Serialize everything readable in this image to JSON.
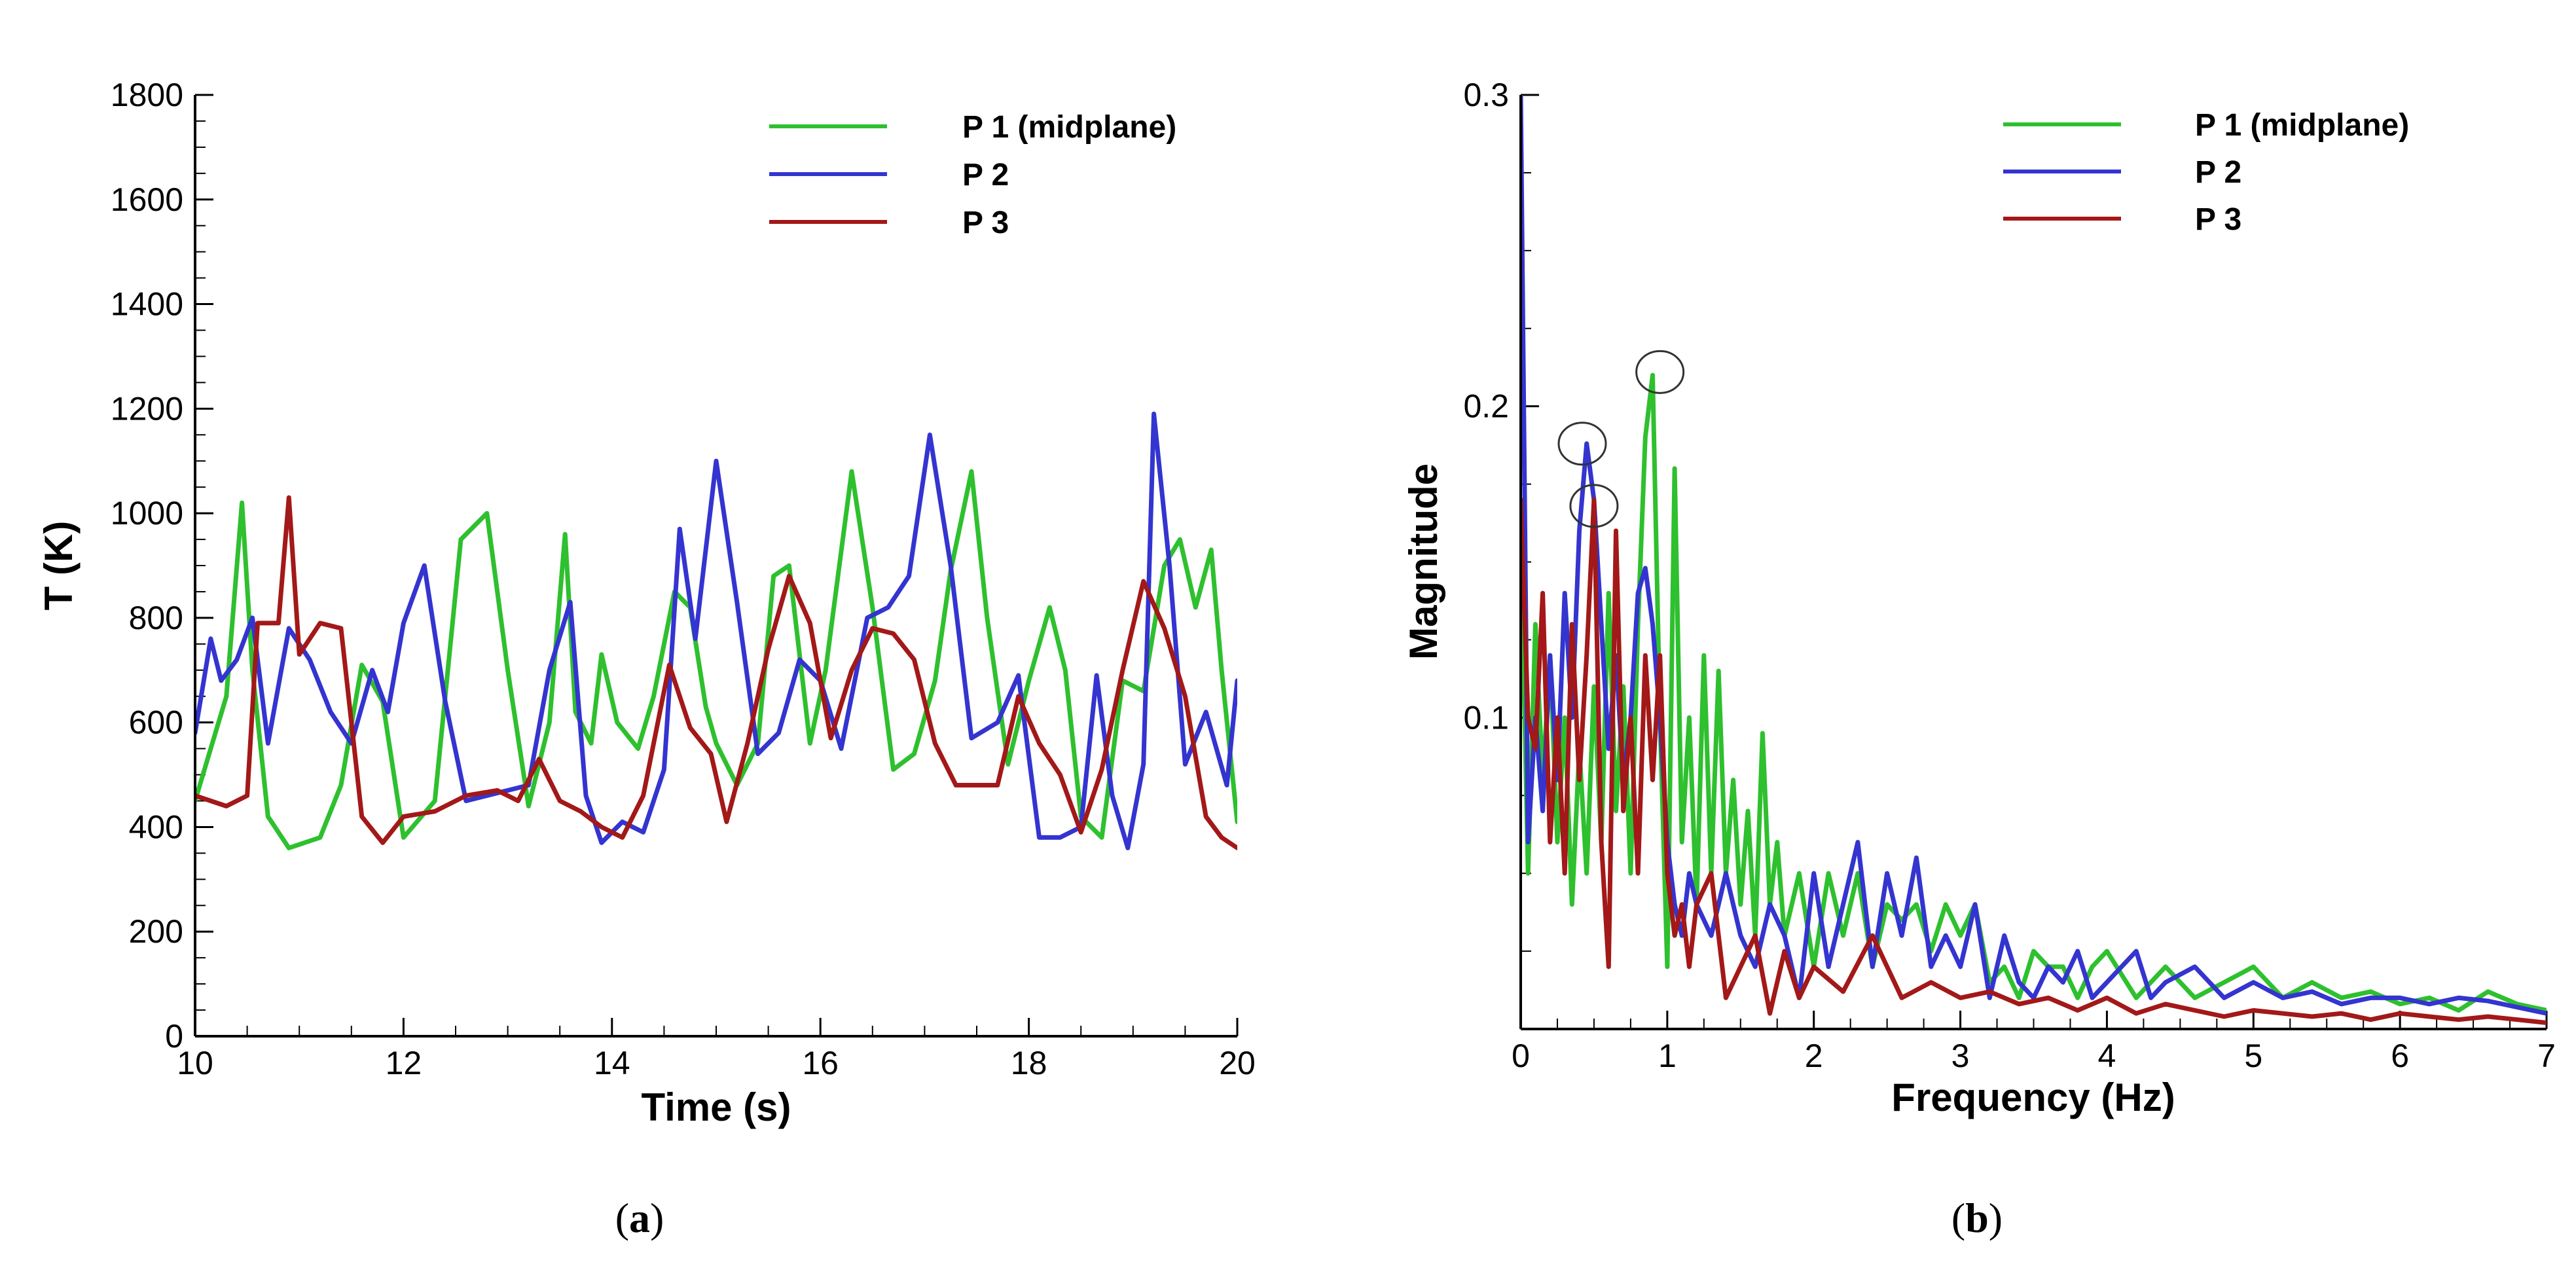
{
  "colors": {
    "green": "#2ec02e",
    "blue": "#3434d0",
    "red": "#a31818"
  },
  "captions": {
    "a_letter": "a",
    "b_letter": "b"
  },
  "chart_data": [
    {
      "id": "a",
      "type": "line",
      "xlabel": "Time (s)",
      "ylabel": "T (K)",
      "xlim": [
        10,
        20
      ],
      "ylim": [
        0,
        1800
      ],
      "xticks": [
        10,
        12,
        14,
        16,
        18,
        20
      ],
      "yticks": [
        0,
        200,
        400,
        600,
        800,
        1000,
        1200,
        1400,
        1600,
        1800
      ],
      "legend_position": "top-right",
      "series": [
        {
          "name": "P 1 (midplane)",
          "color": "#2ec02e",
          "x": [
            10,
            10.3,
            10.45,
            10.55,
            10.7,
            10.9,
            11.2,
            11.4,
            11.6,
            11.8,
            12.0,
            12.3,
            12.55,
            12.8,
            13.0,
            13.2,
            13.4,
            13.55,
            13.65,
            13.8,
            13.9,
            14.05,
            14.25,
            14.4,
            14.6,
            14.75,
            14.9,
            15.0,
            15.2,
            15.4,
            15.55,
            15.7,
            15.9,
            16.05,
            16.3,
            16.5,
            16.7,
            16.9,
            17.1,
            17.25,
            17.45,
            17.6,
            17.8,
            18.0,
            18.2,
            18.35,
            18.5,
            18.7,
            18.9,
            19.1,
            19.3,
            19.45,
            19.6,
            19.75,
            19.85,
            20.0
          ],
          "y": [
            450,
            650,
            1020,
            700,
            420,
            360,
            380,
            480,
            710,
            640,
            380,
            450,
            950,
            1000,
            700,
            440,
            600,
            960,
            620,
            560,
            730,
            600,
            550,
            650,
            850,
            820,
            630,
            560,
            480,
            560,
            880,
            900,
            560,
            700,
            1080,
            820,
            510,
            540,
            680,
            890,
            1080,
            800,
            520,
            680,
            820,
            700,
            420,
            380,
            680,
            660,
            900,
            950,
            820,
            930,
            700,
            410
          ]
        },
        {
          "name": "P 2",
          "color": "#3434d0",
          "x": [
            10,
            10.15,
            10.25,
            10.4,
            10.55,
            10.7,
            10.9,
            11.1,
            11.3,
            11.5,
            11.7,
            11.85,
            12.0,
            12.2,
            12.4,
            12.6,
            12.8,
            13.0,
            13.2,
            13.4,
            13.6,
            13.75,
            13.9,
            14.1,
            14.3,
            14.5,
            14.65,
            14.8,
            15.0,
            15.2,
            15.4,
            15.6,
            15.8,
            16.0,
            16.2,
            16.45,
            16.65,
            16.85,
            17.05,
            17.25,
            17.45,
            17.7,
            17.9,
            18.1,
            18.3,
            18.5,
            18.65,
            18.8,
            18.95,
            19.1,
            19.2,
            19.35,
            19.5,
            19.7,
            19.9,
            20.0
          ],
          "y": [
            580,
            760,
            680,
            720,
            800,
            560,
            780,
            720,
            620,
            560,
            700,
            620,
            790,
            900,
            640,
            450,
            460,
            470,
            480,
            700,
            830,
            460,
            370,
            410,
            390,
            510,
            970,
            760,
            1100,
            830,
            540,
            580,
            720,
            680,
            550,
            800,
            820,
            880,
            1150,
            900,
            570,
            600,
            690,
            380,
            380,
            400,
            690,
            460,
            360,
            520,
            1190,
            900,
            520,
            620,
            480,
            680
          ]
        },
        {
          "name": "P 3",
          "color": "#a31818",
          "x": [
            10,
            10.3,
            10.5,
            10.6,
            10.8,
            10.9,
            11.0,
            11.2,
            11.4,
            11.6,
            11.8,
            12.0,
            12.3,
            12.6,
            12.9,
            13.1,
            13.3,
            13.5,
            13.7,
            13.9,
            14.1,
            14.3,
            14.55,
            14.75,
            14.95,
            15.1,
            15.3,
            15.5,
            15.7,
            15.9,
            16.1,
            16.3,
            16.5,
            16.7,
            16.9,
            17.1,
            17.3,
            17.5,
            17.7,
            17.9,
            18.1,
            18.3,
            18.5,
            18.7,
            18.9,
            19.1,
            19.3,
            19.5,
            19.7,
            19.85,
            20.0
          ],
          "y": [
            460,
            440,
            460,
            790,
            790,
            1030,
            730,
            790,
            780,
            420,
            370,
            420,
            430,
            460,
            470,
            450,
            530,
            450,
            430,
            400,
            380,
            460,
            710,
            590,
            540,
            410,
            560,
            740,
            880,
            790,
            570,
            700,
            780,
            770,
            720,
            560,
            480,
            480,
            480,
            650,
            560,
            500,
            390,
            510,
            700,
            870,
            780,
            650,
            420,
            380,
            360
          ]
        }
      ]
    },
    {
      "id": "b",
      "type": "line",
      "xlabel": "Frequency (Hz)",
      "ylabel": "Magnitude",
      "xlim": [
        0,
        7
      ],
      "ylim": [
        0,
        0.3
      ],
      "xticks": [
        0,
        1,
        2,
        3,
        4,
        5,
        6,
        7
      ],
      "yticks": [
        0.1,
        0.2,
        0.3
      ],
      "legend_position": "top-right",
      "annotations": [
        "circle at f≈0.9 Hz on P 1 peak",
        "circle at f≈0.45 Hz on P 2 peak",
        "circle at f≈0.5 Hz on P 3 peak"
      ],
      "circled_peaks": [
        {
          "x": 0.95,
          "y": 0.211
        },
        {
          "x": 0.42,
          "y": 0.188
        },
        {
          "x": 0.5,
          "y": 0.168
        }
      ],
      "series": [
        {
          "name": "P 1 (midplane)",
          "color": "#2ec02e",
          "x": [
            0,
            0.05,
            0.1,
            0.15,
            0.2,
            0.25,
            0.3,
            0.35,
            0.4,
            0.45,
            0.5,
            0.55,
            0.6,
            0.65,
            0.7,
            0.75,
            0.8,
            0.85,
            0.9,
            0.95,
            1.0,
            1.05,
            1.1,
            1.15,
            1.2,
            1.25,
            1.3,
            1.35,
            1.4,
            1.45,
            1.5,
            1.55,
            1.6,
            1.65,
            1.7,
            1.75,
            1.8,
            1.9,
            2.0,
            2.1,
            2.2,
            2.3,
            2.4,
            2.5,
            2.6,
            2.7,
            2.8,
            2.9,
            3.0,
            3.1,
            3.2,
            3.3,
            3.4,
            3.5,
            3.6,
            3.7,
            3.8,
            3.9,
            4.0,
            4.2,
            4.4,
            4.6,
            4.8,
            5.0,
            5.2,
            5.4,
            5.6,
            5.8,
            6.0,
            6.2,
            6.4,
            6.6,
            6.8,
            7.0
          ],
          "y": [
            0.16,
            0.05,
            0.13,
            0.08,
            0.12,
            0.06,
            0.1,
            0.04,
            0.09,
            0.05,
            0.11,
            0.06,
            0.14,
            0.07,
            0.11,
            0.05,
            0.13,
            0.19,
            0.21,
            0.1,
            0.02,
            0.18,
            0.06,
            0.1,
            0.04,
            0.12,
            0.05,
            0.115,
            0.05,
            0.08,
            0.04,
            0.07,
            0.03,
            0.095,
            0.04,
            0.06,
            0.03,
            0.05,
            0.02,
            0.05,
            0.03,
            0.05,
            0.02,
            0.04,
            0.035,
            0.04,
            0.025,
            0.04,
            0.03,
            0.04,
            0.015,
            0.02,
            0.01,
            0.025,
            0.02,
            0.02,
            0.01,
            0.02,
            0.025,
            0.01,
            0.02,
            0.01,
            0.015,
            0.02,
            0.01,
            0.015,
            0.01,
            0.012,
            0.008,
            0.01,
            0.006,
            0.012,
            0.008,
            0.006
          ]
        },
        {
          "name": "P 2",
          "color": "#3434d0",
          "x": [
            0,
            0.05,
            0.1,
            0.15,
            0.2,
            0.25,
            0.3,
            0.35,
            0.4,
            0.45,
            0.5,
            0.55,
            0.6,
            0.65,
            0.7,
            0.75,
            0.8,
            0.85,
            0.9,
            0.95,
            1.0,
            1.05,
            1.1,
            1.15,
            1.2,
            1.3,
            1.4,
            1.5,
            1.6,
            1.7,
            1.8,
            1.9,
            2.0,
            2.1,
            2.2,
            2.3,
            2.4,
            2.5,
            2.6,
            2.7,
            2.8,
            2.9,
            3.0,
            3.1,
            3.2,
            3.3,
            3.4,
            3.5,
            3.6,
            3.7,
            3.8,
            3.9,
            4.0,
            4.1,
            4.2,
            4.3,
            4.4,
            4.6,
            4.8,
            5.0,
            5.2,
            5.4,
            5.6,
            5.8,
            6.0,
            6.2,
            6.4,
            6.6,
            6.8,
            7.0
          ],
          "y": [
            0.3,
            0.06,
            0.1,
            0.07,
            0.12,
            0.08,
            0.14,
            0.1,
            0.16,
            0.188,
            0.17,
            0.13,
            0.09,
            0.12,
            0.08,
            0.1,
            0.14,
            0.148,
            0.13,
            0.1,
            0.06,
            0.04,
            0.03,
            0.05,
            0.04,
            0.03,
            0.05,
            0.03,
            0.02,
            0.04,
            0.03,
            0.01,
            0.05,
            0.02,
            0.04,
            0.06,
            0.02,
            0.05,
            0.03,
            0.055,
            0.02,
            0.03,
            0.02,
            0.04,
            0.01,
            0.03,
            0.015,
            0.01,
            0.02,
            0.015,
            0.025,
            0.01,
            0.015,
            0.02,
            0.025,
            0.01,
            0.015,
            0.02,
            0.01,
            0.015,
            0.01,
            0.012,
            0.008,
            0.01,
            0.01,
            0.008,
            0.01,
            0.009,
            0.007,
            0.005
          ]
        },
        {
          "name": "P 3",
          "color": "#a31818",
          "x": [
            0,
            0.05,
            0.1,
            0.15,
            0.2,
            0.25,
            0.3,
            0.35,
            0.4,
            0.45,
            0.5,
            0.55,
            0.6,
            0.65,
            0.7,
            0.75,
            0.8,
            0.85,
            0.9,
            0.95,
            1.0,
            1.05,
            1.1,
            1.15,
            1.2,
            1.3,
            1.4,
            1.5,
            1.6,
            1.7,
            1.8,
            1.9,
            2.0,
            2.2,
            2.4,
            2.6,
            2.8,
            3.0,
            3.2,
            3.4,
            3.6,
            3.8,
            4.0,
            4.2,
            4.4,
            4.6,
            4.8,
            5.0,
            5.2,
            5.4,
            5.6,
            5.8,
            6.0,
            6.2,
            6.4,
            6.6,
            6.8,
            7.0
          ],
          "y": [
            0.17,
            0.1,
            0.09,
            0.14,
            0.06,
            0.1,
            0.05,
            0.13,
            0.08,
            0.12,
            0.17,
            0.06,
            0.02,
            0.16,
            0.07,
            0.1,
            0.05,
            0.12,
            0.08,
            0.12,
            0.05,
            0.03,
            0.04,
            0.02,
            0.04,
            0.05,
            0.01,
            0.02,
            0.03,
            0.005,
            0.025,
            0.01,
            0.02,
            0.012,
            0.03,
            0.01,
            0.015,
            0.01,
            0.012,
            0.008,
            0.01,
            0.006,
            0.01,
            0.005,
            0.008,
            0.006,
            0.004,
            0.006,
            0.005,
            0.004,
            0.005,
            0.003,
            0.005,
            0.004,
            0.003,
            0.004,
            0.003,
            0.002
          ]
        }
      ]
    }
  ]
}
